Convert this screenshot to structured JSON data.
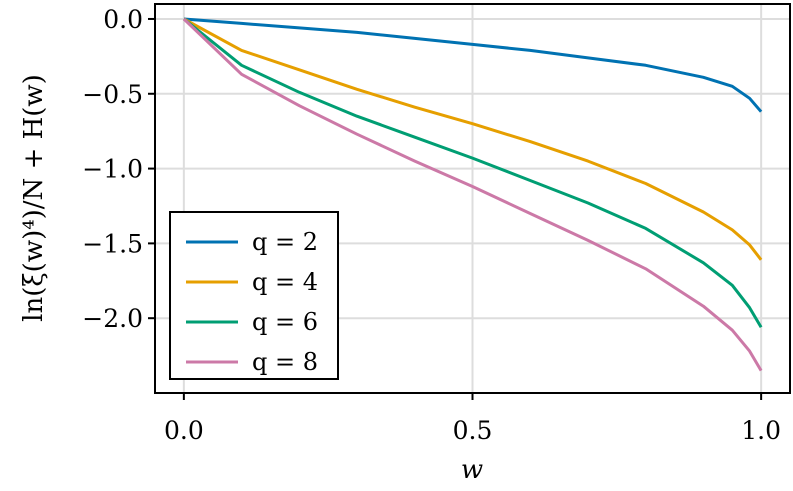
{
  "chart_data": {
    "type": "line",
    "xlabel": "w",
    "ylabel": "ln(ξ(w)⁴)/N + H(w)",
    "xlim": [
      -0.05,
      1.05
    ],
    "ylim": [
      -2.5,
      0.1
    ],
    "xticks": [
      0.0,
      0.5,
      1.0
    ],
    "xtick_labels": [
      "0.0",
      "0.5",
      "1.0"
    ],
    "yticks": [
      0.0,
      -0.5,
      -1.0,
      -1.5,
      -2.0
    ],
    "ytick_labels": [
      "0.0",
      "−0.5",
      "−1.0",
      "−1.5",
      "−2.0"
    ],
    "grid": true,
    "legend_position": "bottom-left",
    "x": [
      0.0,
      0.1,
      0.2,
      0.3,
      0.4,
      0.5,
      0.6,
      0.7,
      0.8,
      0.9,
      0.95,
      0.98,
      1.0
    ],
    "series": [
      {
        "name": "q = 2",
        "color": "#0072b2",
        "values": [
          0.0,
          -0.03,
          -0.06,
          -0.09,
          -0.13,
          -0.17,
          -0.21,
          -0.26,
          -0.31,
          -0.39,
          -0.45,
          -0.53,
          -0.62
        ]
      },
      {
        "name": "q = 4",
        "color": "#e69f00",
        "values": [
          0.0,
          -0.21,
          -0.34,
          -0.47,
          -0.59,
          -0.7,
          -0.82,
          -0.95,
          -1.1,
          -1.29,
          -1.41,
          -1.51,
          -1.61
        ]
      },
      {
        "name": "q = 6",
        "color": "#009e73",
        "values": [
          0.0,
          -0.31,
          -0.49,
          -0.65,
          -0.79,
          -0.93,
          -1.08,
          -1.23,
          -1.4,
          -1.63,
          -1.78,
          -1.93,
          -2.06
        ]
      },
      {
        "name": "q = 8",
        "color": "#cc79a7",
        "values": [
          0.0,
          -0.37,
          -0.58,
          -0.77,
          -0.95,
          -1.12,
          -1.3,
          -1.48,
          -1.67,
          -1.92,
          -2.08,
          -2.22,
          -2.35
        ]
      }
    ]
  }
}
